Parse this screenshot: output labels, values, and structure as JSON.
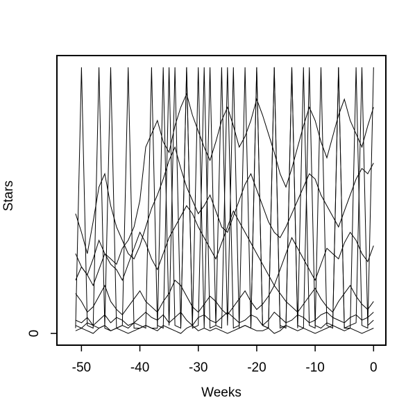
{
  "chart_data": {
    "type": "line",
    "xlabel": "Weeks",
    "ylabel": "Stars",
    "x": [
      -51,
      -50,
      -49,
      -48,
      -47,
      -46,
      -45,
      -44,
      -43,
      -42,
      -41,
      -40,
      -39,
      -38,
      -37,
      -36,
      -35,
      -34,
      -33,
      -32,
      -31,
      -30,
      -29,
      -28,
      -27,
      -26,
      -25,
      -24,
      -23,
      -22,
      -21,
      -20,
      -19,
      -18,
      -17,
      -16,
      -15,
      -14,
      -13,
      -12,
      -11,
      -10,
      -9,
      -8,
      -7,
      -6,
      -5,
      -4,
      -3,
      -2,
      -1,
      0
    ],
    "xlim": [
      -54.2,
      2.1
    ],
    "xticks": [
      -50,
      -40,
      -30,
      -20,
      -10,
      0
    ],
    "ylim": [
      -4.4,
      104.4
    ],
    "yticks": [
      0
    ],
    "series": [
      {
        "color": "#000000",
        "values": [
          2,
          100,
          3,
          2,
          100,
          2,
          1,
          2,
          3,
          100,
          2,
          2,
          3,
          2,
          2,
          100,
          3,
          100,
          2,
          100,
          3,
          100,
          2,
          100,
          3,
          2,
          100,
          2,
          3,
          100,
          2,
          100,
          3,
          2,
          100,
          2,
          3,
          100,
          2,
          100,
          3,
          2,
          100,
          3,
          2,
          100,
          2,
          2,
          100,
          3,
          2,
          100
        ]
      },
      {
        "color": "#000000",
        "values": [
          45,
          38,
          30,
          42,
          55,
          60,
          48,
          40,
          35,
          30,
          28,
          33,
          40,
          47,
          52,
          58,
          65,
          70,
          62,
          55,
          50,
          45,
          48,
          52,
          46,
          40,
          38,
          44,
          50,
          56,
          60,
          54,
          48,
          42,
          38,
          36,
          40,
          45,
          50,
          55,
          60,
          58,
          52,
          48,
          44,
          40,
          46,
          52,
          58,
          62,
          60,
          64
        ]
      },
      {
        "color": "#000000",
        "values": [
          15,
          12,
          8,
          10,
          14,
          18,
          12,
          9,
          7,
          10,
          13,
          16,
          12,
          10,
          8,
          12,
          15,
          20,
          18,
          14,
          10,
          8,
          11,
          14,
          12,
          9,
          7,
          10,
          13,
          16,
          12,
          9,
          11,
          14,
          18,
          15,
          12,
          10,
          8,
          11,
          14,
          17,
          13,
          10,
          8,
          12,
          15,
          18,
          14,
          11,
          9,
          12
        ]
      },
      {
        "color": "#000000",
        "values": [
          1,
          2,
          1,
          0,
          2,
          3,
          1,
          2,
          1,
          0,
          1,
          2,
          3,
          2,
          1,
          3,
          2,
          1,
          0,
          2,
          3,
          1,
          2,
          1,
          2,
          1,
          0,
          1,
          2,
          3,
          2,
          1,
          1,
          2,
          0,
          1,
          3,
          2,
          1,
          2,
          1,
          0,
          1,
          2,
          3,
          2,
          1,
          2,
          1,
          0,
          1,
          2
        ]
      },
      {
        "color": "#000000",
        "values": [
          20,
          25,
          22,
          18,
          24,
          30,
          28,
          26,
          32,
          35,
          40,
          50,
          70,
          75,
          80,
          72,
          68,
          78,
          85,
          90,
          82,
          76,
          70,
          65,
          72,
          80,
          85,
          78,
          70,
          74,
          80,
          88,
          82,
          75,
          68,
          60,
          55,
          62,
          70,
          78,
          85,
          80,
          72,
          66,
          74,
          82,
          88,
          80,
          75,
          70,
          78,
          85
        ]
      },
      {
        "color": "#000000",
        "values": [
          30,
          25,
          22,
          28,
          35,
          30,
          26,
          24,
          20,
          26,
          32,
          38,
          34,
          28,
          24,
          30,
          36,
          40,
          44,
          48,
          45,
          40,
          36,
          32,
          28,
          34,
          40,
          46,
          42,
          38,
          34,
          30,
          26,
          22,
          18,
          24,
          30,
          36,
          32,
          28,
          24,
          20,
          26,
          32,
          30,
          28,
          34,
          38,
          35,
          30,
          27,
          33
        ]
      },
      {
        "color": "#000000",
        "values": [
          3,
          2,
          4,
          3,
          2,
          3,
          100,
          2,
          3,
          2,
          4,
          3,
          2,
          100,
          3,
          2,
          100,
          3,
          2,
          100,
          2,
          3,
          100,
          2,
          3,
          100,
          3,
          100,
          2,
          3,
          2,
          100,
          3,
          2,
          100,
          3,
          2,
          100,
          3,
          2,
          100,
          3,
          2,
          4,
          3,
          100,
          2,
          3,
          4,
          100,
          3,
          5
        ]
      },
      {
        "color": "#000000",
        "values": [
          5,
          4,
          6,
          3,
          5,
          7,
          4,
          6,
          5,
          3,
          4,
          6,
          8,
          6,
          5,
          7,
          4,
          6,
          8,
          5,
          3,
          6,
          7,
          5,
          4,
          6,
          8,
          6,
          4,
          5,
          7,
          6,
          3,
          5,
          8,
          6,
          4,
          5,
          7,
          6,
          4,
          5,
          7,
          8,
          6,
          5,
          4,
          6,
          7,
          5,
          6,
          8
        ]
      }
    ]
  }
}
